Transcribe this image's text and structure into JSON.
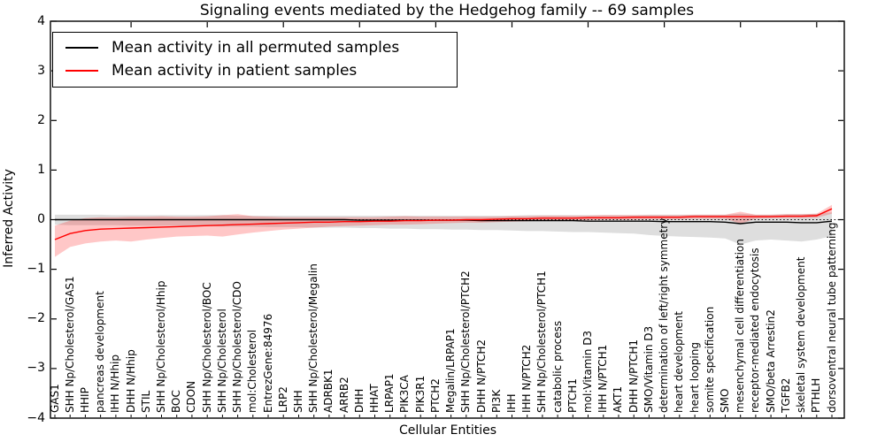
{
  "title": "Signaling events mediated by the Hedgehog family -- 69 samples",
  "legend": {
    "items": [
      {
        "label": "Mean activity in all permuted samples",
        "color": "#000000"
      },
      {
        "label": "Mean activity in patient samples",
        "color": "#ff0000"
      }
    ]
  },
  "axes": {
    "ylabel": "Inferred Activity",
    "xlabel": "Cellular Entities",
    "yticks": [
      4,
      3,
      2,
      1,
      0,
      -1,
      -2,
      -3,
      -4
    ]
  },
  "chart_data": {
    "type": "line",
    "title": "Signaling events mediated by the Hedgehog family -- 69 samples",
    "xlabel": "Cellular Entities",
    "ylabel": "Inferred Activity",
    "ylim": [
      -4,
      4
    ],
    "grid": false,
    "zero_line": true,
    "legend_position": "upper left",
    "categories": [
      "GAS1",
      "SHH Np/Cholesterol/GAS1",
      "HHIP",
      "pancreas development",
      "IHH N/Hhip",
      "DHH N/Hhip",
      "STIL",
      "SHH Np/Cholesterol/Hhip",
      "BOC",
      "CDON",
      "SHH Np/Cholesterol/BOC",
      "SHH Np/Cholesterol",
      "SHH Np/Cholesterol/CDO",
      "mol:Cholesterol",
      "EntrezGene:84976",
      "LRP2",
      "SHH",
      "SHH Np/Cholesterol/Megalin",
      "ADRBK1",
      "ARRB2",
      "DHH",
      "HHAT",
      "LRPAP1",
      "PIK3CA",
      "PIK3R1",
      "PTCH2",
      "Megalin/LRPAP1",
      "SHH Np/Cholesterol/PTCH2",
      "DHH N/PTCH2",
      "PI3K",
      "IHH",
      "IHH N/PTCH2",
      "SHH Np/Cholesterol/PTCH1",
      "catabolic process",
      "PTCH1",
      "mol:Vitamin D3",
      "IHH N/PTCH1",
      "AKT1",
      "DHH N/PTCH1",
      "SMO/Vitamin D3",
      "determination of left/right symmetry",
      "heart development",
      "heart looping",
      "somite specification",
      "SMO",
      "mesenchymal cell differentiation",
      "receptor-mediated endocytosis",
      "SMO/beta Arrestin2",
      "TGFB2",
      "skeletal system development",
      "PTHLH",
      "dorsoventral neural tube patterning"
    ],
    "series": [
      {
        "name": "Mean activity in all permuted samples",
        "color": "#000000",
        "band_color": "#000000",
        "band_opacity": 0.13,
        "values": [
          0,
          0,
          0,
          0,
          0,
          0,
          0,
          0,
          0,
          0,
          0,
          0,
          0,
          0,
          0,
          0,
          0,
          0,
          0,
          0,
          -0.01,
          -0.01,
          -0.01,
          -0.01,
          -0.01,
          -0.01,
          -0.01,
          -0.01,
          -0.02,
          -0.02,
          -0.02,
          -0.02,
          -0.02,
          -0.02,
          -0.02,
          -0.03,
          -0.03,
          -0.03,
          -0.03,
          -0.03,
          -0.04,
          -0.04,
          -0.04,
          -0.04,
          -0.05,
          -0.08,
          -0.05,
          -0.05,
          -0.05,
          -0.06,
          -0.06,
          -0.03
        ],
        "band_upper": [
          0.1,
          0.1,
          0.1,
          0.1,
          0.09,
          0.09,
          0.09,
          0.09,
          0.09,
          0.09,
          0.09,
          0.09,
          0.08,
          0.08,
          0.08,
          0.08,
          0.08,
          0.08,
          0.08,
          0.08,
          0.08,
          0.08,
          0.08,
          0.08,
          0.08,
          0.08,
          0.08,
          0.08,
          0.08,
          0.08,
          0.08,
          0.09,
          0.09,
          0.09,
          0.09,
          0.09,
          0.09,
          0.09,
          0.09,
          0.1,
          0.1,
          0.1,
          0.1,
          0.1,
          0.1,
          0.12,
          0.1,
          0.1,
          0.11,
          0.11,
          0.12,
          0.15
        ],
        "band_lower": [
          -0.1,
          -0.11,
          -0.11,
          -0.11,
          -0.11,
          -0.12,
          -0.12,
          -0.12,
          -0.12,
          -0.13,
          -0.13,
          -0.14,
          -0.14,
          -0.14,
          -0.15,
          -0.15,
          -0.15,
          -0.16,
          -0.16,
          -0.16,
          -0.17,
          -0.17,
          -0.18,
          -0.18,
          -0.19,
          -0.19,
          -0.2,
          -0.2,
          -0.21,
          -0.21,
          -0.22,
          -0.23,
          -0.23,
          -0.24,
          -0.25,
          -0.25,
          -0.26,
          -0.27,
          -0.28,
          -0.31,
          -0.33,
          -0.34,
          -0.35,
          -0.36,
          -0.38,
          -0.5,
          -0.42,
          -0.4,
          -0.42,
          -0.44,
          -0.4,
          -0.33
        ]
      },
      {
        "name": "Mean activity in patient samples",
        "color": "#ff0000",
        "band_color": "#ff0000",
        "band_opacity": 0.22,
        "values": [
          -0.4,
          -0.28,
          -0.22,
          -0.19,
          -0.18,
          -0.17,
          -0.16,
          -0.15,
          -0.14,
          -0.13,
          -0.12,
          -0.11,
          -0.1,
          -0.09,
          -0.08,
          -0.07,
          -0.06,
          -0.05,
          -0.05,
          -0.04,
          -0.04,
          -0.03,
          -0.03,
          -0.02,
          -0.02,
          -0.01,
          -0.01,
          0.0,
          0.0,
          0.01,
          0.02,
          0.02,
          0.03,
          0.03,
          0.03,
          0.04,
          0.04,
          0.04,
          0.05,
          0.05,
          0.05,
          0.05,
          0.06,
          0.06,
          0.06,
          0.06,
          0.06,
          0.06,
          0.07,
          0.07,
          0.08,
          0.22
        ],
        "band_upper": [
          -0.12,
          -0.02,
          0.03,
          0.05,
          0.05,
          0.06,
          0.06,
          0.07,
          0.06,
          0.06,
          0.07,
          0.09,
          0.11,
          0.07,
          0.06,
          0.05,
          0.05,
          0.05,
          0.05,
          0.05,
          0.05,
          0.05,
          0.06,
          0.07,
          0.06,
          0.06,
          0.06,
          0.06,
          0.06,
          0.06,
          0.07,
          0.07,
          0.08,
          0.08,
          0.08,
          0.08,
          0.09,
          0.09,
          0.09,
          0.09,
          0.09,
          0.09,
          0.1,
          0.1,
          0.1,
          0.16,
          0.1,
          0.1,
          0.11,
          0.11,
          0.12,
          0.3
        ],
        "band_lower": [
          -0.75,
          -0.55,
          -0.48,
          -0.44,
          -0.42,
          -0.44,
          -0.4,
          -0.37,
          -0.34,
          -0.33,
          -0.32,
          -0.34,
          -0.3,
          -0.26,
          -0.23,
          -0.2,
          -0.18,
          -0.16,
          -0.14,
          -0.13,
          -0.12,
          -0.11,
          -0.1,
          -0.1,
          -0.09,
          -0.08,
          -0.07,
          -0.06,
          -0.06,
          -0.05,
          -0.04,
          -0.03,
          -0.02,
          -0.02,
          -0.01,
          -0.01,
          0.0,
          0.0,
          0.0,
          0.01,
          0.01,
          0.01,
          0.02,
          0.02,
          0.02,
          -0.08,
          0.02,
          0.03,
          0.03,
          0.03,
          0.04,
          0.12
        ]
      }
    ]
  }
}
